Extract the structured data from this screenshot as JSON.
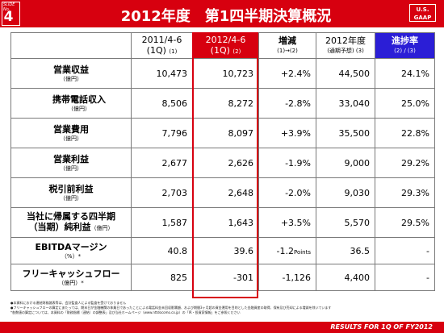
{
  "header": {
    "slide_label": "SLIDE No.",
    "slide_number": "4",
    "title": "2012年度　第1四半期決算概況",
    "gaap_line1": "U.S.",
    "gaap_line2": "GAAP"
  },
  "table": {
    "columns": [
      {
        "line1": "2011/4-6",
        "line2": "(1Q)",
        "note": "(1)"
      },
      {
        "line1": "2012/4-6",
        "line2": "(1Q)",
        "note": "(2)"
      },
      {
        "line1": "増減",
        "line2": "(1)→(2)",
        "note": ""
      },
      {
        "line1": "2012年度",
        "line2": "(通期予想)",
        "note": "(3)"
      },
      {
        "line1": "進捗率",
        "line2": "(2) / (3)",
        "note": ""
      }
    ],
    "rows": [
      {
        "label": "営業収益",
        "unit": "（億円）",
        "values": [
          "10,473",
          "10,723",
          "+2.4%",
          "44,500",
          "24.1%"
        ]
      },
      {
        "label": "携帯電話収入",
        "unit": "（億円）",
        "values": [
          "8,506",
          "8,272",
          "-2.8%",
          "33,040",
          "25.0%"
        ]
      },
      {
        "label": "営業費用",
        "unit": "（億円）",
        "values": [
          "7,796",
          "8,097",
          "+3.9%",
          "35,500",
          "22.8%"
        ]
      },
      {
        "label": "営業利益",
        "unit": "（億円）",
        "values": [
          "2,677",
          "2,626",
          "-1.9%",
          "9,000",
          "29.2%"
        ]
      },
      {
        "label": "税引前利益",
        "unit": "（億円）",
        "values": [
          "2,703",
          "2,648",
          "-2.0%",
          "9,030",
          "29.3%"
        ]
      },
      {
        "label": "当社に帰属する四半期",
        "label2": "（当期）純利益",
        "unit": "（億円）",
        "values": [
          "1,587",
          "1,643",
          "+3.5%",
          "5,570",
          "29.5%"
        ]
      },
      {
        "label": "EBITDAマージン",
        "unit": "（%）*",
        "values": [
          "40.8",
          "39.6",
          "-1.2",
          "36.5",
          "-"
        ],
        "change_suffix": "Points"
      },
      {
        "label": "フリーキャッシュフロー",
        "unit": "（億円）*",
        "values": [
          "825",
          "-301",
          "-1,126",
          "4,400",
          "-"
        ]
      }
    ]
  },
  "notes": [
    "●本資料における連結財務諸表等は、会計監査人による監査を受けておりません",
    "●フリーキャッシュフローの算定にあたっては、期末日が金融機関の休業日であったことによる電話料金未回収影響額、および期間3ヶ月超の資金運用を目的とした金融資産の取得、保有及び売却による増減を除いています",
    "*各数値の算定については、本資料の「財務指標（連結）の調整表」及び当社ホームページ（www.nttdocomo.co.jp）の「IR・投資家情報」をご参照ください"
  ],
  "footer": "RESULTS FOR 1Q OF FY2012",
  "colors": {
    "brand_red": "#d7000f",
    "progress_blue": "#2b1ed6"
  }
}
